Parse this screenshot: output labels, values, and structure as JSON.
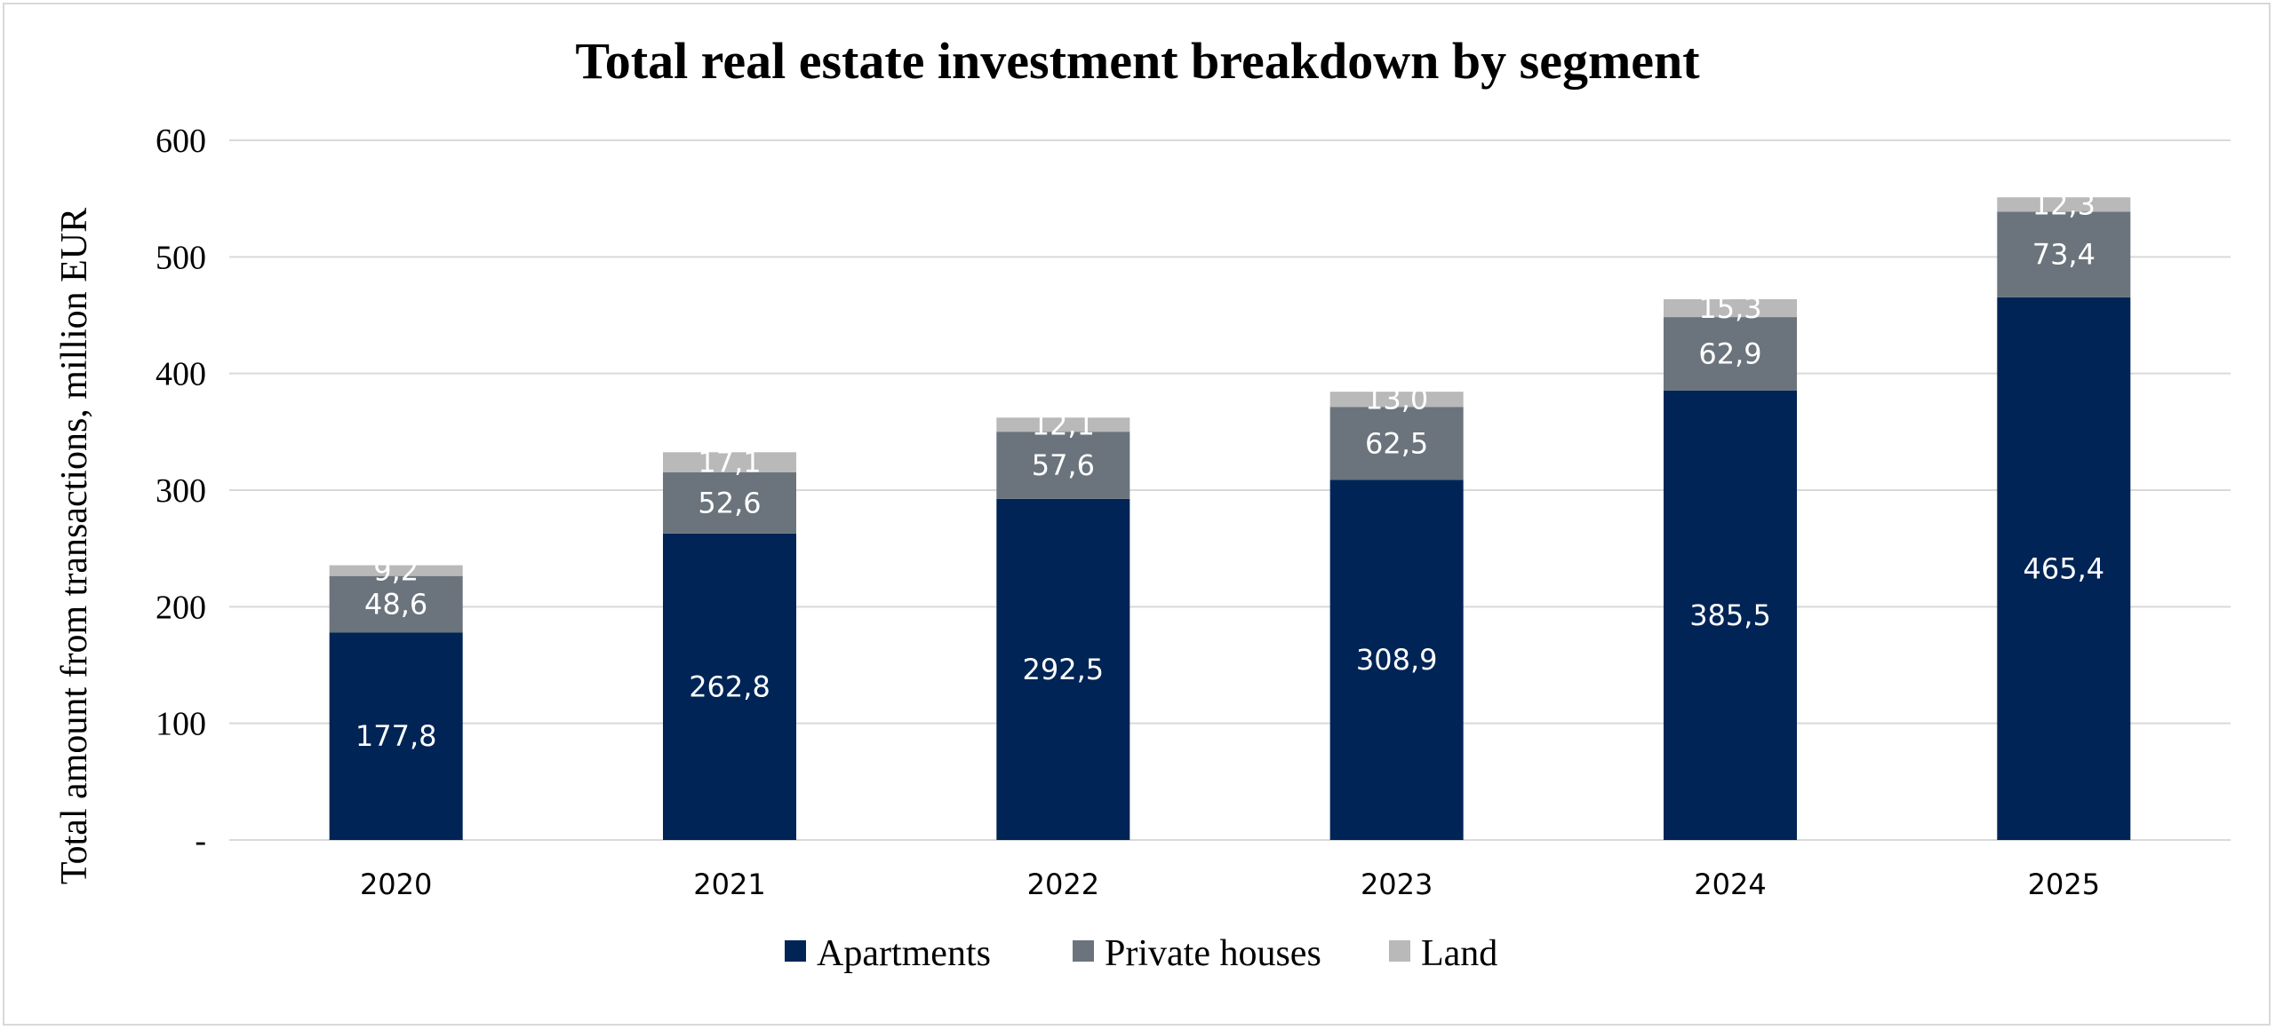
{
  "chart_data": {
    "type": "bar",
    "stacked": true,
    "title": "Total real estate investment breakdown by segment",
    "xlabel": "",
    "ylabel": "Total amount from transactions, million EUR",
    "ylim": [
      0,
      600
    ],
    "yticks": [
      0,
      100,
      200,
      300,
      400,
      500,
      600
    ],
    "ytick_labels": [
      "-",
      "100",
      "200",
      "300",
      "400",
      "500",
      "600"
    ],
    "grid": true,
    "legend_position": "bottom",
    "categories": [
      "2020",
      "2021",
      "2022",
      "2023",
      "2024",
      "2025"
    ],
    "series": [
      {
        "name": "Apartments",
        "color": "#002456",
        "values": [
          177.8,
          262.8,
          292.5,
          308.9,
          385.5,
          465.4
        ],
        "labels": [
          "177,8",
          "262,8",
          "292,5",
          "308,9",
          "385,5",
          "465,4"
        ]
      },
      {
        "name": "Private houses",
        "color": "#6b747c",
        "values": [
          48.6,
          52.6,
          57.6,
          62.5,
          62.9,
          73.4
        ],
        "labels": [
          "48,6",
          "52,6",
          "57,6",
          "62,5",
          "62,9",
          "73,4"
        ]
      },
      {
        "name": "Land",
        "color": "#b9b9b9",
        "values": [
          9.2,
          17.1,
          12.1,
          13.0,
          15.3,
          12.3
        ],
        "labels": [
          "9,2",
          "17,1",
          "12,1",
          "13,0",
          "15,3",
          "12,3"
        ]
      }
    ]
  }
}
